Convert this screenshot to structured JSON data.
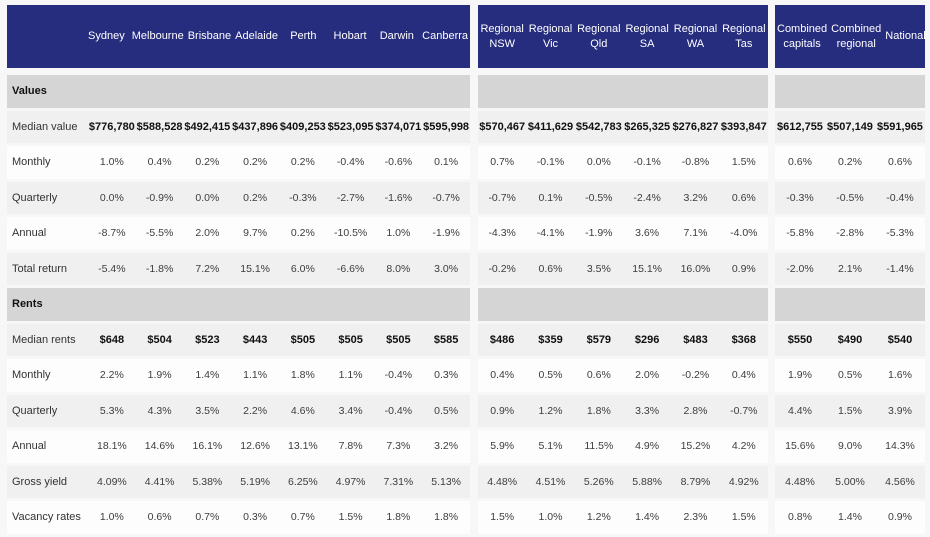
{
  "colors": {
    "header_bg": "#262c7e",
    "header_text": "#ffffff",
    "section_band": "#d5d5d5",
    "row_alt": "#f0f0f0",
    "row_white": "#fdfdfd",
    "page_bg": "#f7f7f7"
  },
  "chart_data": {
    "type": "table",
    "groups": [
      {
        "id": "capital-cities",
        "columns": [
          "Sydney",
          "Melbourne",
          "Brisbane",
          "Adelaide",
          "Perth",
          "Hobart",
          "Darwin",
          "Canberra"
        ]
      },
      {
        "id": "regional",
        "columns": [
          "Regional NSW",
          "Regional Vic",
          "Regional Qld",
          "Regional SA",
          "Regional WA",
          "Regional Tas"
        ]
      },
      {
        "id": "combined",
        "columns": [
          "Combined capitals",
          "Combined regional",
          "National"
        ]
      }
    ],
    "sections": [
      {
        "label": "Values",
        "rows": [
          {
            "label": "Median value",
            "bold": true,
            "values": [
              "$776,780",
              "$588,528",
              "$492,415",
              "$437,896",
              "$409,253",
              "$523,095",
              "$374,071",
              "$595,998",
              "$570,467",
              "$411,629",
              "$542,783",
              "$265,325",
              "$276,827",
              "$393,847",
              "$612,755",
              "$507,149",
              "$591,965"
            ]
          },
          {
            "label": "Monthly",
            "bold": false,
            "values": [
              "1.0%",
              "0.4%",
              "0.2%",
              "0.2%",
              "0.2%",
              "-0.4%",
              "-0.6%",
              "0.1%",
              "0.7%",
              "-0.1%",
              "0.0%",
              "-0.1%",
              "-0.8%",
              "1.5%",
              "0.6%",
              "0.2%",
              "0.6%"
            ]
          },
          {
            "label": "Quarterly",
            "bold": false,
            "values": [
              "0.0%",
              "-0.9%",
              "0.0%",
              "0.2%",
              "-0.3%",
              "-2.7%",
              "-1.6%",
              "-0.7%",
              "-0.7%",
              "0.1%",
              "-0.5%",
              "-2.4%",
              "3.2%",
              "0.6%",
              "-0.3%",
              "-0.5%",
              "-0.4%"
            ]
          },
          {
            "label": "Annual",
            "bold": false,
            "values": [
              "-8.7%",
              "-5.5%",
              "2.0%",
              "9.7%",
              "0.2%",
              "-10.5%",
              "1.0%",
              "-1.9%",
              "-4.3%",
              "-4.1%",
              "-1.9%",
              "3.6%",
              "7.1%",
              "-4.0%",
              "-5.8%",
              "-2.8%",
              "-5.3%"
            ]
          },
          {
            "label": "Total return",
            "bold": false,
            "values": [
              "-5.4%",
              "-1.8%",
              "7.2%",
              "15.1%",
              "6.0%",
              "-6.6%",
              "8.0%",
              "3.0%",
              "-0.2%",
              "0.6%",
              "3.5%",
              "15.1%",
              "16.0%",
              "0.9%",
              "-2.0%",
              "2.1%",
              "-1.4%"
            ]
          }
        ]
      },
      {
        "label": "Rents",
        "rows": [
          {
            "label": "Median rents",
            "bold": true,
            "values": [
              "$648",
              "$504",
              "$523",
              "$443",
              "$505",
              "$505",
              "$505",
              "$585",
              "$486",
              "$359",
              "$579",
              "$296",
              "$483",
              "$368",
              "$550",
              "$490",
              "$540"
            ]
          },
          {
            "label": "Monthly",
            "bold": false,
            "values": [
              "2.2%",
              "1.9%",
              "1.4%",
              "1.1%",
              "1.8%",
              "1.1%",
              "-0.4%",
              "0.3%",
              "0.4%",
              "0.5%",
              "0.6%",
              "2.0%",
              "-0.2%",
              "0.4%",
              "1.9%",
              "0.5%",
              "1.6%"
            ]
          },
          {
            "label": "Quarterly",
            "bold": false,
            "values": [
              "5.3%",
              "4.3%",
              "3.5%",
              "2.2%",
              "4.6%",
              "3.4%",
              "-0.4%",
              "0.5%",
              "0.9%",
              "1.2%",
              "1.8%",
              "3.3%",
              "2.8%",
              "-0.7%",
              "4.4%",
              "1.5%",
              "3.9%"
            ]
          },
          {
            "label": "Annual",
            "bold": false,
            "values": [
              "18.1%",
              "14.6%",
              "16.1%",
              "12.6%",
              "13.1%",
              "7.8%",
              "7.3%",
              "3.2%",
              "5.9%",
              "5.1%",
              "11.5%",
              "4.9%",
              "15.2%",
              "4.2%",
              "15.6%",
              "9.0%",
              "14.3%"
            ]
          },
          {
            "label": "Gross yield",
            "bold": false,
            "values": [
              "4.09%",
              "4.41%",
              "5.38%",
              "5.19%",
              "6.25%",
              "4.97%",
              "7.31%",
              "5.13%",
              "4.48%",
              "4.51%",
              "5.26%",
              "5.88%",
              "8.79%",
              "4.92%",
              "4.48%",
              "5.00%",
              "4.56%"
            ]
          },
          {
            "label": "Vacancy rates",
            "bold": false,
            "values": [
              "1.0%",
              "0.6%",
              "0.7%",
              "0.3%",
              "0.7%",
              "1.5%",
              "1.8%",
              "1.8%",
              "1.5%",
              "1.0%",
              "1.2%",
              "1.4%",
              "2.3%",
              "1.5%",
              "0.8%",
              "1.4%",
              "0.9%"
            ]
          }
        ]
      }
    ]
  }
}
